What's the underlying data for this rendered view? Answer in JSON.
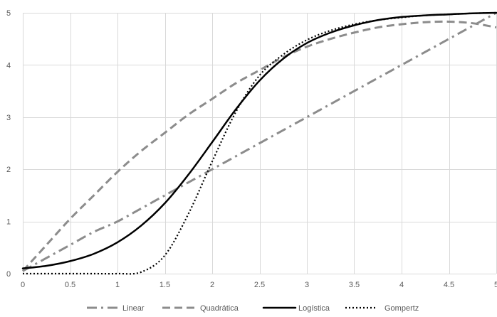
{
  "chart_data": {
    "type": "line",
    "title": "",
    "xlabel": "",
    "ylabel": "",
    "xlim": [
      0,
      5
    ],
    "ylim": [
      0,
      5
    ],
    "x_ticks": [
      "0",
      "0.5",
      "1",
      "1.5",
      "2",
      "2.5",
      "3",
      "3.5",
      "4",
      "4.5",
      "5"
    ],
    "y_ticks": [
      "0",
      "1",
      "2",
      "3",
      "4",
      "5"
    ],
    "grid": true,
    "legend_position": "bottom",
    "x": [
      0,
      0.25,
      0.5,
      0.75,
      1,
      1.25,
      1.5,
      1.75,
      2,
      2.25,
      2.5,
      2.75,
      3,
      3.25,
      3.5,
      3.75,
      4,
      4.25,
      4.5,
      4.75,
      5
    ],
    "series": [
      {
        "name": "Linear",
        "color": "#8c8c8c",
        "dash": "dash-dot",
        "values": [
          0.05,
          0.3,
          0.55,
          0.8,
          1.0,
          1.25,
          1.5,
          1.75,
          2.0,
          2.25,
          2.5,
          2.75,
          3.0,
          3.25,
          3.5,
          3.75,
          4.0,
          4.25,
          4.5,
          4.75,
          5.0
        ]
      },
      {
        "name": "Quadrática",
        "color": "#8c8c8c",
        "dash": "dash",
        "values": [
          0.05,
          0.55,
          1.05,
          1.5,
          1.95,
          2.35,
          2.7,
          3.05,
          3.35,
          3.65,
          3.9,
          4.15,
          4.35,
          4.5,
          4.62,
          4.72,
          4.78,
          4.82,
          4.83,
          4.8,
          4.72
        ]
      },
      {
        "name": "Logística",
        "color": "#000000",
        "dash": "solid",
        "values": [
          0.1,
          0.15,
          0.24,
          0.38,
          0.6,
          0.92,
          1.35,
          1.9,
          2.52,
          3.15,
          3.7,
          4.12,
          4.42,
          4.62,
          4.76,
          4.86,
          4.92,
          4.95,
          4.97,
          4.99,
          5.0
        ]
      },
      {
        "name": "Gompertz",
        "color": "#000000",
        "dash": "dot",
        "values": [
          0.0,
          0.0,
          0.0,
          0.0,
          0.0,
          0.03,
          0.35,
          1.15,
          2.15,
          3.1,
          3.8,
          4.2,
          4.48,
          4.66,
          4.78,
          4.86,
          4.91,
          4.95,
          4.97,
          4.99,
          5.0
        ]
      }
    ]
  }
}
